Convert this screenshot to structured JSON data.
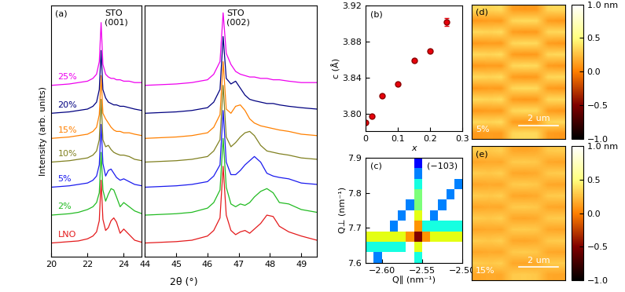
{
  "chart_data": [
    {
      "type": "line",
      "panel_label": "(a)",
      "y_label": "Intensity (arb. units)",
      "x_label": "2θ (°)",
      "annotations": [
        {
          "text": "STO\n(001)",
          "x": 22.75
        }
      ],
      "x": [
        20,
        20.5,
        21,
        21.5,
        22,
        22.3,
        22.5,
        22.65,
        22.75,
        22.85,
        23.0,
        23.15,
        23.3,
        23.45,
        23.6,
        23.8,
        24.0,
        24.3,
        24.6,
        25.0
      ],
      "xlim": [
        20,
        25
      ],
      "xticks": [
        20,
        22,
        24
      ],
      "ylim": [
        0,
        18
      ],
      "tick_labels": "x",
      "series": [
        {
          "name": "LNO",
          "color": "#e41a1c",
          "values": [
            1.0,
            1.05,
            1.1,
            1.15,
            1.3,
            1.5,
            1.8,
            2.6,
            5.5,
            2.7,
            1.9,
            2.1,
            2.6,
            2.8,
            2.5,
            1.7,
            2.0,
            1.6,
            1.2,
            1.05
          ]
        },
        {
          "name": "2%",
          "color": "#22bb22",
          "values": [
            3.0,
            3.05,
            3.1,
            3.2,
            3.4,
            3.6,
            3.9,
            4.6,
            7.5,
            4.8,
            4.0,
            4.5,
            4.9,
            4.8,
            4.3,
            3.6,
            3.9,
            3.6,
            3.3,
            3.1
          ]
        },
        {
          "name": "5%",
          "color": "#1a1aee",
          "values": [
            5.0,
            5.05,
            5.1,
            5.2,
            5.3,
            5.5,
            5.8,
            6.6,
            9.5,
            6.7,
            5.8,
            6.2,
            6.3,
            6.0,
            5.7,
            5.5,
            5.6,
            5.4,
            5.2,
            5.1
          ]
        },
        {
          "name": "10%",
          "color": "#808020",
          "values": [
            6.8,
            6.85,
            6.9,
            7.0,
            7.1,
            7.3,
            7.6,
            8.4,
            11.3,
            8.4,
            7.9,
            8.0,
            7.7,
            7.5,
            7.4,
            7.3,
            7.3,
            7.2,
            7.0,
            6.9
          ]
        },
        {
          "name": "15%",
          "color": "#ff8000",
          "values": [
            8.5,
            8.55,
            8.6,
            8.7,
            8.8,
            9.0,
            9.3,
            10.2,
            13.0,
            10.3,
            9.9,
            9.6,
            9.3,
            9.1,
            9.0,
            9.0,
            8.9,
            8.9,
            8.8,
            8.7
          ]
        },
        {
          "name": "20%",
          "color": "#000080",
          "values": [
            10.3,
            10.35,
            10.4,
            10.5,
            10.6,
            10.8,
            11.1,
            12.0,
            14.8,
            12.0,
            11.4,
            11.1,
            11.0,
            10.9,
            10.9,
            10.8,
            10.8,
            10.7,
            10.6,
            10.5
          ]
        },
        {
          "name": "25%",
          "color": "#ee00ee",
          "values": [
            12.3,
            12.35,
            12.4,
            12.5,
            12.6,
            12.8,
            13.1,
            14.0,
            16.8,
            13.8,
            13.1,
            12.9,
            12.8,
            12.8,
            12.7,
            12.7,
            12.6,
            12.6,
            12.5,
            12.5
          ]
        }
      ]
    },
    {
      "type": "line",
      "annotations": [
        {
          "text": "STO\n(002)",
          "x": 46.5
        }
      ],
      "x": [
        44,
        44.5,
        45,
        45.5,
        46,
        46.2,
        46.4,
        46.5,
        46.6,
        46.75,
        46.9,
        47.05,
        47.2,
        47.35,
        47.5,
        47.7,
        47.9,
        48.1,
        48.3,
        48.6,
        49.0,
        49.5
      ],
      "xlim": [
        44,
        49.5
      ],
      "xticks": [
        44,
        45,
        46,
        47,
        48,
        49
      ],
      "ylim": [
        0,
        18
      ],
      "tick_labels": "x",
      "series": [
        {
          "color": "#e41a1c",
          "values": [
            1.0,
            1.05,
            1.1,
            1.2,
            1.5,
            1.9,
            2.8,
            6.5,
            3.0,
            1.9,
            1.6,
            1.8,
            1.9,
            1.7,
            2.0,
            2.4,
            3.0,
            2.9,
            2.2,
            1.8,
            1.5,
            1.2
          ]
        },
        {
          "color": "#22bb22",
          "values": [
            3.0,
            3.05,
            3.1,
            3.2,
            3.5,
            3.9,
            4.8,
            8.5,
            5.0,
            3.8,
            3.6,
            3.8,
            3.7,
            3.9,
            4.3,
            4.7,
            4.9,
            4.6,
            3.9,
            3.8,
            3.4,
            3.2
          ]
        },
        {
          "color": "#1a1aee",
          "values": [
            5.0,
            5.05,
            5.1,
            5.2,
            5.4,
            5.8,
            6.6,
            10.5,
            6.8,
            5.9,
            5.9,
            6.2,
            6.6,
            6.9,
            7.2,
            6.8,
            6.0,
            5.8,
            5.7,
            5.6,
            5.3,
            5.2
          ]
        },
        {
          "color": "#808020",
          "values": [
            6.8,
            6.85,
            6.9,
            7.0,
            7.2,
            7.6,
            8.4,
            12.3,
            8.6,
            7.9,
            8.2,
            8.6,
            8.9,
            9.0,
            8.7,
            8.0,
            7.6,
            7.5,
            7.4,
            7.3,
            7.1,
            7.0
          ]
        },
        {
          "color": "#ff8000",
          "values": [
            8.5,
            8.55,
            8.6,
            8.7,
            8.9,
            9.3,
            10.2,
            14.0,
            10.6,
            10.3,
            10.8,
            10.9,
            10.5,
            9.9,
            9.6,
            9.4,
            9.3,
            9.2,
            9.1,
            9.0,
            8.8,
            8.7
          ]
        },
        {
          "color": "#000080",
          "values": [
            10.3,
            10.35,
            10.4,
            10.5,
            10.7,
            11.1,
            12.0,
            15.8,
            12.8,
            12.4,
            12.6,
            12.1,
            11.6,
            11.3,
            11.2,
            11.1,
            11.0,
            11.0,
            10.9,
            10.8,
            10.7,
            10.6
          ]
        },
        {
          "color": "#ee00ee",
          "values": [
            12.3,
            12.35,
            12.4,
            12.5,
            12.7,
            13.1,
            14.0,
            17.5,
            14.6,
            13.8,
            13.3,
            13.1,
            13.0,
            12.9,
            12.9,
            12.8,
            12.8,
            12.7,
            12.7,
            12.6,
            12.5,
            12.5
          ]
        }
      ]
    },
    {
      "type": "scatter",
      "panel_label": "(b)",
      "x_label": "x",
      "y_label": "c (Å)",
      "x": [
        0,
        0.02,
        0.05,
        0.1,
        0.15,
        0.2,
        0.25
      ],
      "values": [
        3.79,
        3.797,
        3.82,
        3.833,
        3.859,
        3.87,
        3.902
      ],
      "errors": [
        0.001,
        0.001,
        0.001,
        0.001,
        0.001,
        0.001,
        0.004
      ],
      "color": "#e8000b",
      "marker": "o",
      "xlim": [
        0,
        0.3
      ],
      "xticks": [
        0,
        0.1,
        0.2,
        0.3
      ],
      "ylim": [
        3.78,
        3.92
      ],
      "yticks": [
        {
          "value": 3.8,
          "label": "3.80"
        },
        {
          "value": 3.84,
          "label": "3.84"
        },
        {
          "value": 3.88,
          "label": "3.88"
        },
        {
          "value": 3.92,
          "label": "3.92"
        }
      ]
    },
    {
      "type": "heatmap",
      "panel_label": "(c)",
      "annotations": [
        {
          "text": "(−103)"
        }
      ],
      "x_label": "Q∥ (nm⁻¹)",
      "y_label": "Q⊥ (nm⁻¹)",
      "x_edges": [
        -2.62,
        -2.61,
        -2.6,
        -2.59,
        -2.58,
        -2.57,
        -2.56,
        -2.55,
        -2.54,
        -2.53,
        -2.52,
        -2.51,
        -2.5
      ],
      "y_edges": [
        7.6,
        7.63,
        7.66,
        7.69,
        7.72,
        7.75,
        7.78,
        7.81,
        7.84,
        7.87,
        7.9
      ],
      "color_range": [
        0,
        4
      ],
      "cells": [
        [
          null,
          1.0,
          null,
          null,
          null,
          null,
          1.5,
          null,
          null,
          null,
          null,
          null
        ],
        [
          1.5,
          1.5,
          1.5,
          1.5,
          1.5,
          null,
          2.5,
          null,
          null,
          null,
          null,
          null
        ],
        [
          2.5,
          2.5,
          2.5,
          2.5,
          2.5,
          3.0,
          4.0,
          3.0,
          2.5,
          2.5,
          2.5,
          2.5
        ],
        [
          null,
          null,
          null,
          1.0,
          null,
          null,
          3.0,
          1.5,
          1.5,
          1.5,
          1.5,
          1.5
        ],
        [
          null,
          null,
          null,
          null,
          1.0,
          null,
          2.5,
          null,
          1.0,
          null,
          null,
          null
        ],
        [
          null,
          null,
          null,
          null,
          null,
          1.0,
          2.0,
          null,
          null,
          1.0,
          null,
          null
        ],
        [
          null,
          null,
          null,
          null,
          null,
          null,
          2.0,
          null,
          null,
          null,
          1.0,
          null
        ],
        [
          null,
          null,
          null,
          null,
          null,
          null,
          1.5,
          null,
          null,
          null,
          null,
          1.0
        ],
        [
          null,
          null,
          null,
          null,
          null,
          null,
          1.0,
          null,
          null,
          null,
          null,
          null
        ],
        [
          null,
          null,
          null,
          null,
          null,
          null,
          0.5,
          null,
          null,
          null,
          null,
          null
        ]
      ],
      "xlim": [
        -2.62,
        -2.5
      ],
      "xticks": [
        {
          "value": -2.6,
          "label": "−2.60"
        },
        {
          "value": -2.55,
          "label": "−2.55"
        },
        {
          "value": -2.5,
          "label": "−2.50"
        }
      ],
      "ylim": [
        7.6,
        7.9
      ],
      "yticks": [
        7.6,
        7.7,
        7.8,
        7.9
      ]
    },
    {
      "type": "image",
      "panel_label": "(d)",
      "sample_label": "5%",
      "scale_bar": "2 um",
      "tick_labels": false,
      "cells": [
        [
          0.35,
          0.33,
          0.36,
          0.12,
          0.1,
          0.11,
          0.34,
          0.35
        ],
        [
          0.1,
          0.12,
          0.11,
          0.34,
          0.36,
          0.35,
          0.12,
          0.1
        ],
        [
          0.35,
          0.33,
          0.36,
          0.12,
          0.1,
          0.11,
          0.34,
          0.35
        ],
        [
          0.1,
          0.12,
          0.11,
          0.34,
          0.36,
          0.35,
          0.12,
          0.1
        ],
        [
          0.35,
          0.33,
          0.36,
          0.12,
          0.1,
          0.11,
          0.34,
          0.35
        ],
        [
          0.1,
          0.12,
          0.11,
          0.34,
          0.36,
          0.35,
          0.12,
          0.1
        ],
        [
          0.35,
          0.33,
          0.36,
          0.12,
          0.1,
          0.11,
          0.34,
          0.35
        ],
        [
          0.1,
          0.12,
          0.11,
          0.34,
          0.36,
          0.35,
          0.12,
          0.1
        ],
        [
          0.35,
          0.33,
          0.36,
          0.12,
          0.1,
          0.11,
          0.34,
          0.35
        ],
        [
          0.1,
          0.12,
          0.11,
          0.34,
          0.36,
          0.35,
          0.12,
          0.1
        ],
        [
          0.35,
          0.33,
          0.36,
          0.12,
          0.1,
          0.11,
          0.34,
          0.35
        ],
        [
          0.1,
          0.12,
          0.11,
          0.34,
          0.36,
          0.35,
          0.12,
          0.1
        ]
      ],
      "colorbar": {
        "range": [
          -1.0,
          1.0
        ],
        "ticks": [
          {
            "value": -1.0,
            "label": "−1.0"
          },
          {
            "value": -0.5,
            "label": "−0.5"
          },
          0.0,
          0.5,
          {
            "value": 1.0,
            "label": "1.0 nm"
          }
        ]
      }
    },
    {
      "type": "image",
      "panel_label": "(e)",
      "sample_label": "15%",
      "scale_bar": "2 um",
      "tick_labels": false,
      "cells": [
        [
          0.3,
          0.28,
          0.31,
          0.16,
          0.15,
          0.17,
          0.29,
          0.3
        ],
        [
          0.15,
          0.17,
          0.16,
          0.29,
          0.3,
          0.28,
          0.16,
          0.15
        ],
        [
          0.3,
          0.28,
          0.31,
          0.16,
          0.15,
          0.17,
          0.29,
          0.3
        ],
        [
          0.15,
          0.17,
          0.16,
          0.29,
          0.3,
          0.28,
          0.16,
          0.15
        ],
        [
          0.3,
          0.28,
          0.31,
          0.16,
          0.15,
          0.17,
          0.29,
          0.3
        ],
        [
          0.15,
          0.17,
          0.16,
          0.29,
          0.3,
          0.28,
          0.16,
          0.15
        ],
        [
          0.3,
          0.28,
          0.31,
          0.16,
          0.15,
          0.17,
          0.29,
          0.3
        ],
        [
          0.15,
          0.17,
          0.16,
          0.29,
          0.3,
          0.28,
          0.16,
          0.15
        ],
        [
          0.3,
          0.28,
          0.31,
          0.16,
          0.15,
          0.17,
          0.29,
          0.3
        ],
        [
          0.15,
          0.17,
          0.16,
          0.29,
          0.3,
          0.28,
          0.16,
          0.15
        ],
        [
          0.3,
          0.28,
          0.31,
          0.16,
          0.15,
          0.17,
          0.29,
          0.3
        ],
        [
          0.15,
          0.17,
          0.16,
          0.29,
          0.3,
          0.28,
          0.16,
          0.15
        ]
      ],
      "colorbar": {
        "range": [
          -1.0,
          1.0
        ],
        "ticks": [
          {
            "value": -1.0,
            "label": "−1.0"
          },
          {
            "value": -0.5,
            "label": "−0.5"
          },
          0.0,
          0.5,
          {
            "value": 1.0,
            "label": "1.0 nm"
          }
        ]
      }
    }
  ]
}
